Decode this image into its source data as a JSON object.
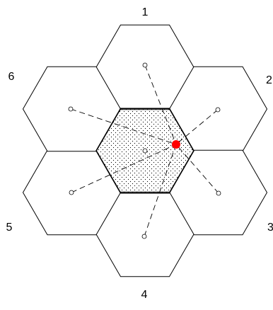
{
  "cells": [
    {
      "id": "1",
      "label": "1"
    },
    {
      "id": "2",
      "label": "2"
    },
    {
      "id": "3",
      "label": "3"
    },
    {
      "id": "4",
      "label": "4"
    },
    {
      "id": "5",
      "label": "5"
    },
    {
      "id": "6",
      "label": "6"
    }
  ],
  "colors": {
    "outline": "#000000",
    "background": "#ffffff",
    "stipple": "#000000",
    "marker": "#ff0000"
  }
}
